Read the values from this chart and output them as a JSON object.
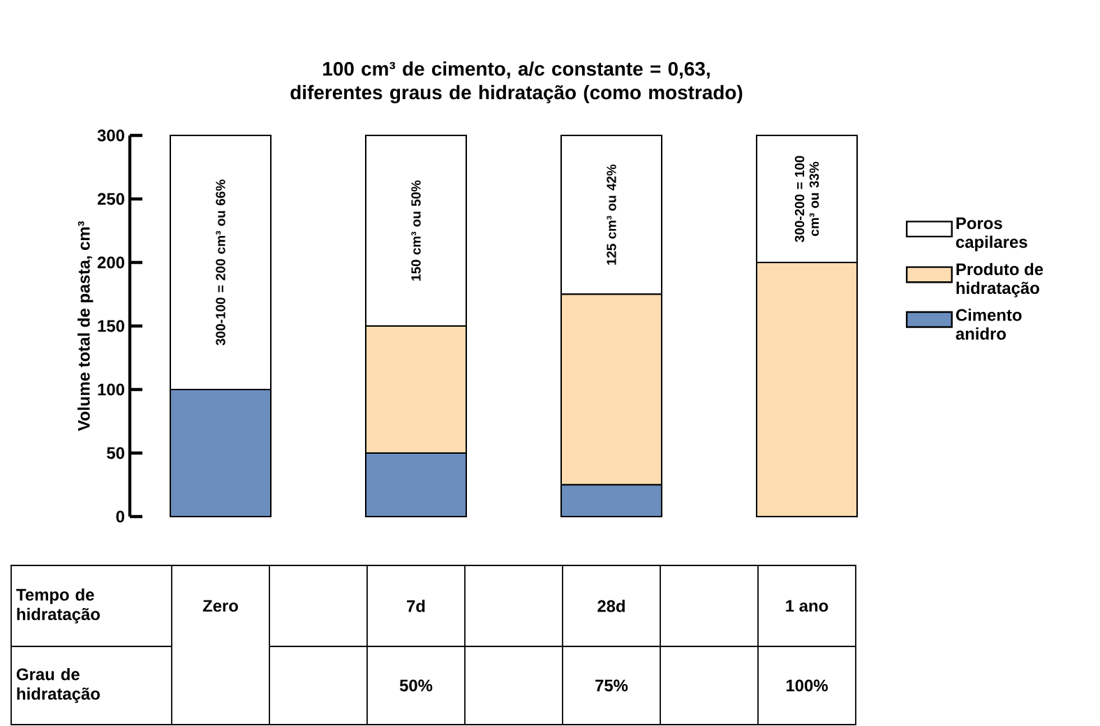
{
  "chart_data": {
    "type": "bar",
    "stacked": true,
    "title": "100 cm³ de cimento, a/c constante = 0,63, diferentes graus de hidratação (como mostrado)",
    "ylabel": "Volume total de pasta, cm³",
    "categories": [
      "Zero",
      "7d",
      "28d",
      "1 ano"
    ],
    "series": [
      {
        "name": "Cimento anidro",
        "color": "#6b8ebf",
        "values": [
          100,
          50,
          25,
          0
        ]
      },
      {
        "name": "Produto de hidratação",
        "color": "#fcdcb0",
        "values": [
          0,
          100,
          150,
          200
        ]
      },
      {
        "name": "Poros capilares",
        "color": "#ffffff",
        "values": [
          200,
          150,
          125,
          100
        ],
        "value_labels": [
          "300-100 = 200 cm³ ou 66%",
          "150 cm³ ou 50%",
          "125 cm³ ou 42%",
          "300-200 = 100 cm³ ou 33%"
        ]
      }
    ],
    "ylim": [
      0,
      300
    ],
    "yticks": [
      0,
      50,
      100,
      150,
      200,
      250,
      300
    ],
    "legend": "right",
    "annotations": [
      "Tempo de hidratação",
      "Grau de hidratação",
      "50%",
      "75%",
      "100%"
    ]
  }
}
